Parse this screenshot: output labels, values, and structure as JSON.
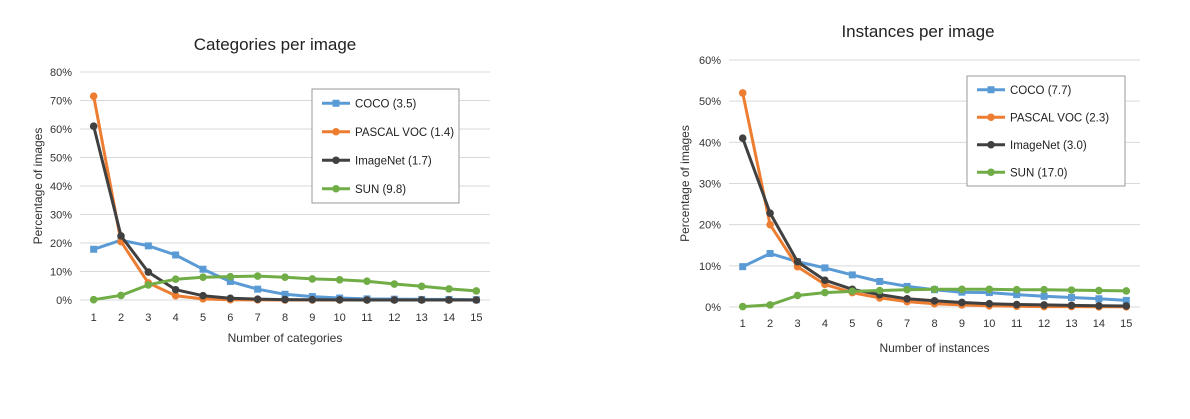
{
  "chart_data": [
    {
      "type": "line",
      "title": "Categories per image",
      "xlabel": "Number of categories",
      "ylabel": "Percentage of images",
      "x": [
        1,
        2,
        3,
        4,
        5,
        6,
        7,
        8,
        9,
        10,
        11,
        12,
        13,
        14,
        15
      ],
      "ylim": [
        0,
        80
      ],
      "yticks": [
        "0%",
        "10%",
        "20%",
        "30%",
        "40%",
        "50%",
        "60%",
        "70%",
        "80%"
      ],
      "grid": true,
      "legend_position": "top-right",
      "series": [
        {
          "name": "COCO (3.5)",
          "color": "#5b9bd5",
          "marker": "square",
          "values": [
            17.8,
            21.0,
            19.0,
            15.8,
            10.8,
            6.5,
            3.8,
            2.0,
            1.2,
            0.7,
            0.4,
            0.3,
            0.2,
            0.2,
            0.1
          ]
        },
        {
          "name": "PASCAL VOC (1.4)",
          "color": "#ed7d31",
          "marker": "circle",
          "values": [
            71.5,
            20.5,
            6.0,
            1.5,
            0.4,
            0.1,
            0.05,
            0,
            0,
            0,
            0,
            0,
            0,
            0,
            0
          ]
        },
        {
          "name": "ImageNet (1.7)",
          "color": "#404040",
          "marker": "circle",
          "values": [
            61.0,
            22.5,
            9.8,
            3.6,
            1.5,
            0.6,
            0.3,
            0.15,
            0.1,
            0.05,
            0,
            0,
            0,
            0,
            0
          ]
        },
        {
          "name": "SUN (9.8)",
          "color": "#70ad47",
          "marker": "circle",
          "values": [
            0.1,
            1.6,
            5.3,
            7.3,
            8.0,
            8.2,
            8.4,
            8.0,
            7.4,
            7.1,
            6.6,
            5.6,
            4.8,
            3.9,
            3.2
          ]
        }
      ]
    },
    {
      "type": "line",
      "title": "Instances per image",
      "xlabel": "Number of instances",
      "ylabel": "Percentage of images",
      "x": [
        1,
        2,
        3,
        4,
        5,
        6,
        7,
        8,
        9,
        10,
        11,
        12,
        13,
        14,
        15
      ],
      "ylim": [
        0,
        60
      ],
      "yticks": [
        "0%",
        "10%",
        "20%",
        "30%",
        "40%",
        "50%",
        "60%"
      ],
      "grid": true,
      "legend_position": "top-right",
      "series": [
        {
          "name": "COCO (7.7)",
          "color": "#5b9bd5",
          "marker": "square",
          "values": [
            9.8,
            13.0,
            11.0,
            9.5,
            7.8,
            6.2,
            5.0,
            4.2,
            3.6,
            3.5,
            3.0,
            2.6,
            2.3,
            2.0,
            1.6
          ]
        },
        {
          "name": "PASCAL VOC (2.3)",
          "color": "#ed7d31",
          "marker": "circle",
          "values": [
            52.0,
            20.0,
            9.8,
            5.5,
            3.5,
            2.2,
            1.3,
            0.8,
            0.5,
            0.3,
            0.2,
            0.1,
            0.1,
            0.05,
            0.05
          ]
        },
        {
          "name": "ImageNet (3.0)",
          "color": "#404040",
          "marker": "circle",
          "values": [
            41.0,
            22.8,
            11.0,
            6.5,
            4.3,
            3.0,
            2.0,
            1.5,
            1.1,
            0.8,
            0.6,
            0.5,
            0.4,
            0.3,
            0.25
          ]
        },
        {
          "name": "SUN (17.0)",
          "color": "#70ad47",
          "marker": "circle",
          "values": [
            0.1,
            0.5,
            2.8,
            3.5,
            3.8,
            4.0,
            4.2,
            4.3,
            4.3,
            4.3,
            4.2,
            4.2,
            4.1,
            4.0,
            3.9
          ]
        }
      ]
    }
  ]
}
